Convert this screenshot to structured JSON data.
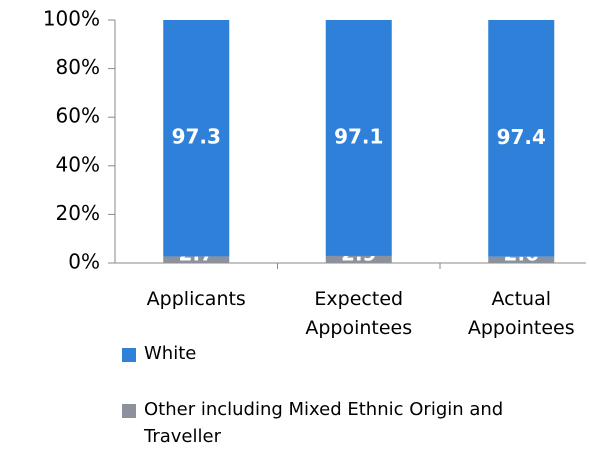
{
  "chart_data": {
    "type": "stacked_bar",
    "categories": [
      "Applicants",
      "Expected Appointees",
      "Actual Appointees"
    ],
    "series": [
      {
        "name": "White",
        "color": "#2e80d8",
        "values": [
          97.3,
          97.1,
          97.4
        ]
      },
      {
        "name": "Other including Mixed Ethnic Origin and Traveller",
        "color": "#8c919b",
        "values": [
          2.7,
          2.9,
          2.6
        ]
      }
    ],
    "ylim": [
      0,
      100
    ],
    "yticks": [
      {
        "value": 0,
        "label": "0%"
      },
      {
        "value": 20,
        "label": "20%"
      },
      {
        "value": 40,
        "label": "40%"
      },
      {
        "value": 60,
        "label": "60%"
      },
      {
        "value": 80,
        "label": "80%"
      },
      {
        "value": 100,
        "label": "100%"
      }
    ],
    "legend": "bottom"
  }
}
